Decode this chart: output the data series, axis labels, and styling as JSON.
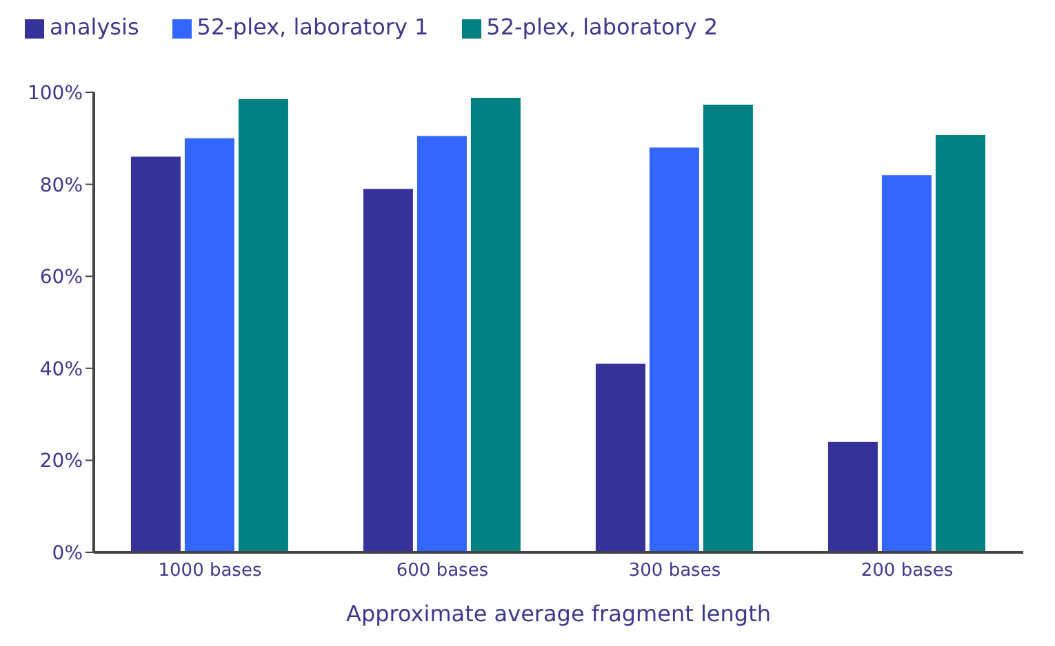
{
  "chart_data": {
    "type": "bar",
    "xlabel": "Approximate average fragment length",
    "categories": [
      "1000 bases",
      "600 bases",
      "300 bases",
      "200 bases"
    ],
    "series": [
      {
        "name": "analysis",
        "color": "#35339a",
        "values": [
          86,
          79,
          41,
          24
        ]
      },
      {
        "name": "52-plex, laboratory 1",
        "color": "#3366ff",
        "values": [
          90,
          90.5,
          88,
          82
        ]
      },
      {
        "name": "52-plex, laboratory 2",
        "color": "#008080",
        "values": [
          98.5,
          98.8,
          97.3,
          90.7
        ]
      }
    ],
    "ylim": [
      0,
      100
    ],
    "yticks": [
      {
        "value": 0,
        "label": "0%"
      },
      {
        "value": 20,
        "label": "20%"
      },
      {
        "value": 40,
        "label": "40%"
      },
      {
        "value": 60,
        "label": "60%"
      },
      {
        "value": 80,
        "label": "80%"
      },
      {
        "value": 100,
        "label": "100%"
      }
    ],
    "grid": false,
    "legend": "top left"
  }
}
